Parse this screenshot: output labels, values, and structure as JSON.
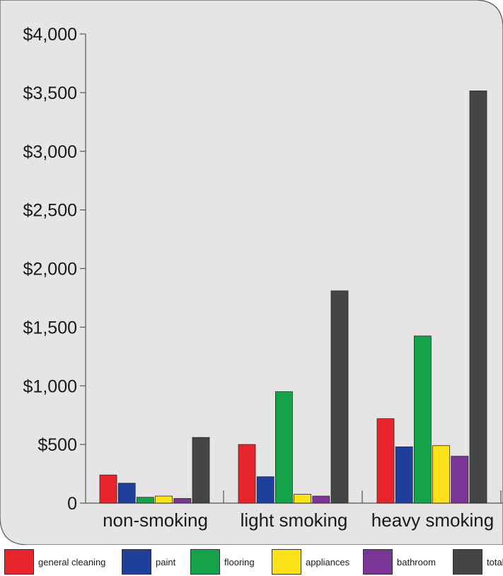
{
  "chart_data": {
    "type": "bar",
    "categories": [
      "non-smoking",
      "light smoking",
      "heavy smoking"
    ],
    "series": [
      {
        "name": "general cleaning",
        "color": "#e8242c",
        "values": [
          240,
          500,
          720
        ]
      },
      {
        "name": "paint",
        "color": "#1f3f9a",
        "values": [
          170,
          225,
          480
        ]
      },
      {
        "name": "flooring",
        "color": "#14a348",
        "values": [
          50,
          950,
          1425
        ]
      },
      {
        "name": "appliances",
        "color": "#fde11b",
        "values": [
          60,
          75,
          490
        ]
      },
      {
        "name": "bathroom",
        "color": "#7b3597",
        "values": [
          40,
          60,
          400
        ]
      },
      {
        "name": "total",
        "color": "#434546",
        "values": [
          560,
          1810,
          3515
        ]
      }
    ],
    "yticks": [
      {
        "value": 0,
        "label": "0"
      },
      {
        "value": 500,
        "label": "$500"
      },
      {
        "value": 1000,
        "label": "$1,000"
      },
      {
        "value": 1500,
        "label": "$1,500"
      },
      {
        "value": 2000,
        "label": "$2,000"
      },
      {
        "value": 2500,
        "label": "$2,500"
      },
      {
        "value": 3000,
        "label": "$3,000"
      },
      {
        "value": 3500,
        "label": "$3,500"
      },
      {
        "value": 4000,
        "label": "$4,000"
      }
    ],
    "ylim": [
      0,
      4000
    ],
    "grid": false,
    "legend_position": "bottom"
  }
}
